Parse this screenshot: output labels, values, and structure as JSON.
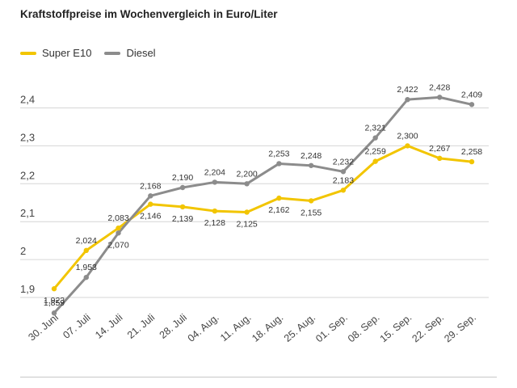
{
  "chart_data": {
    "type": "line",
    "title": "Kraftstoffpreise im Wochenvergleich in Euro/Liter",
    "categories": [
      "30. Juni",
      "07. Juli",
      "14. Juli",
      "21. Juli",
      "28. Juli",
      "04. Aug.",
      "11. Aug.",
      "18. Aug.",
      "25. Aug.",
      "01. Sep.",
      "08. Sep.",
      "15. Sep.",
      "22. Sep.",
      "29. Sep."
    ],
    "series": [
      {
        "name": "Super E10",
        "color": "#f2c500",
        "values": [
          1.923,
          2.024,
          2.083,
          2.146,
          2.139,
          2.128,
          2.125,
          2.162,
          2.155,
          2.183,
          2.259,
          2.3,
          2.267,
          2.258
        ],
        "labels": [
          "1,923",
          "2,024",
          "2,083",
          "2,146",
          "2,139",
          "2,128",
          "2,125",
          "2,162",
          "2,155",
          "2,183",
          "2,259",
          "2,300",
          "2,267",
          "2,258"
        ]
      },
      {
        "name": "Diesel",
        "color": "#8c8c8c",
        "values": [
          1.859,
          1.953,
          2.07,
          2.168,
          2.19,
          2.204,
          2.2,
          2.253,
          2.248,
          2.232,
          2.321,
          2.422,
          2.428,
          2.409
        ],
        "labels": [
          "1,859",
          "1,953",
          "2,070",
          "2,168",
          "2,190",
          "2,204",
          "2,200",
          "2,253",
          "2,248",
          "2,232",
          "2,321",
          "2,422",
          "2,428",
          "2,409"
        ]
      }
    ],
    "yticks": [
      1.9,
      2.0,
      2.1,
      2.2,
      2.3,
      2.4
    ],
    "ytick_labels": [
      "1,9",
      "2",
      "2,1",
      "2,2",
      "2,3",
      "2,4"
    ],
    "ylim": [
      1.85,
      2.45
    ],
    "grid": true,
    "legend": "top-left",
    "xlabel": "",
    "ylabel": ""
  }
}
